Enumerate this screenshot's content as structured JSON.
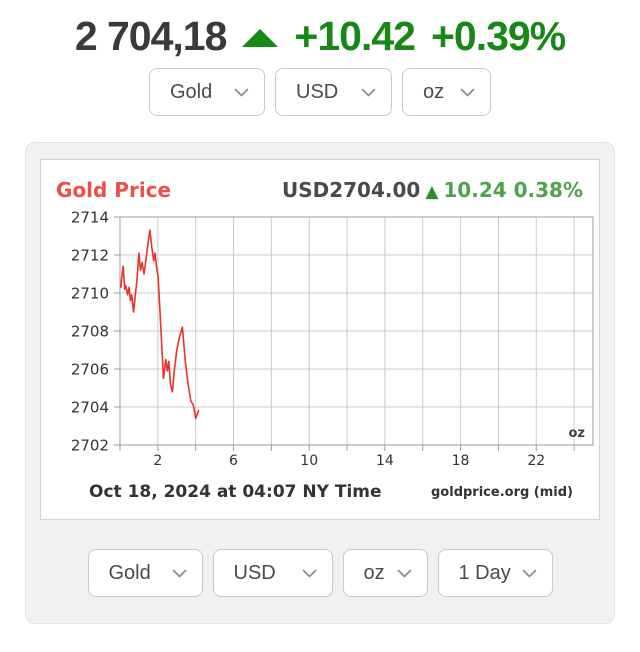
{
  "header": {
    "price": "2 704,18",
    "change": "+10.42",
    "change_pct": "+0.39%",
    "up_arrow": "▲",
    "price_color": "#3a3a3a",
    "green": "#178717"
  },
  "top_selects": [
    {
      "value": "Gold"
    },
    {
      "value": "USD"
    },
    {
      "value": "oz"
    }
  ],
  "bottom_selects": [
    {
      "value": "Gold"
    },
    {
      "value": "USD"
    },
    {
      "value": "oz"
    },
    {
      "value": "1 Day"
    }
  ],
  "chart": {
    "title": "Gold Price",
    "quote": "USD2704.00",
    "quote_arrow": "▲",
    "quote_change": "10.24 0.38%",
    "footer_left": "Oct 18, 2024 at 04:07 NY Time",
    "footer_right": "goldprice.org (mid)"
  },
  "chart_data": {
    "type": "line",
    "title": "Gold Price",
    "unit_label": "oz",
    "x": [
      0.05,
      0.1,
      0.17,
      0.25,
      0.3,
      0.4,
      0.48,
      0.55,
      0.62,
      0.72,
      0.8,
      0.9,
      1.0,
      1.08,
      1.17,
      1.27,
      1.38,
      1.48,
      1.58,
      1.68,
      1.78,
      1.85,
      1.93,
      2.02,
      2.15,
      2.3,
      2.42,
      2.5,
      2.58,
      2.67,
      2.77,
      2.87,
      3.0,
      3.15,
      3.3,
      3.45,
      3.6,
      3.75,
      3.88,
      4.0,
      4.15
    ],
    "y": [
      2710.3,
      2710.9,
      2711.4,
      2710.2,
      2710.4,
      2709.9,
      2710.3,
      2709.6,
      2709.9,
      2709.0,
      2709.8,
      2710.7,
      2712.1,
      2711.2,
      2711.6,
      2711.0,
      2711.8,
      2712.6,
      2713.3,
      2712.4,
      2711.7,
      2712.1,
      2711.4,
      2710.8,
      2708.3,
      2705.5,
      2706.5,
      2705.9,
      2706.4,
      2705.2,
      2704.8,
      2705.9,
      2707.0,
      2707.7,
      2708.2,
      2706.4,
      2705.2,
      2704.3,
      2704.1,
      2703.4,
      2703.8
    ],
    "xlabel": "",
    "ylabel": "",
    "xlim": [
      0,
      25
    ],
    "ylim": [
      2702,
      2714
    ],
    "x_ticks": [
      2,
      6,
      10,
      14,
      18,
      22
    ],
    "x_grid_step": 2,
    "y_ticks": [
      2702,
      2704,
      2706,
      2708,
      2710,
      2712,
      2714
    ],
    "grid": true,
    "line_color": "#e8332a",
    "grid_color": "#cbcbcb",
    "border_color": "#9c9c9c",
    "tick_label_color": "#333333"
  }
}
